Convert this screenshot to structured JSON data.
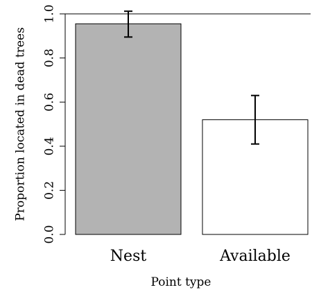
{
  "chart_data": {
    "type": "bar",
    "categories": [
      "Nest",
      "Available"
    ],
    "values": [
      0.955,
      0.52
    ],
    "error_low": [
      0.895,
      0.41
    ],
    "error_high": [
      1.012,
      0.63
    ],
    "bar_colors": [
      "#b3b3b3",
      "#ffffff"
    ],
    "xlabel": "Point type",
    "ylabel": "Proportion located in dead trees",
    "ylim": [
      0,
      1.0
    ],
    "yticks": [
      "0.0",
      "0.2",
      "0.4",
      "0.6",
      "0.8",
      "1.0"
    ],
    "grid": false,
    "legend": "none"
  }
}
